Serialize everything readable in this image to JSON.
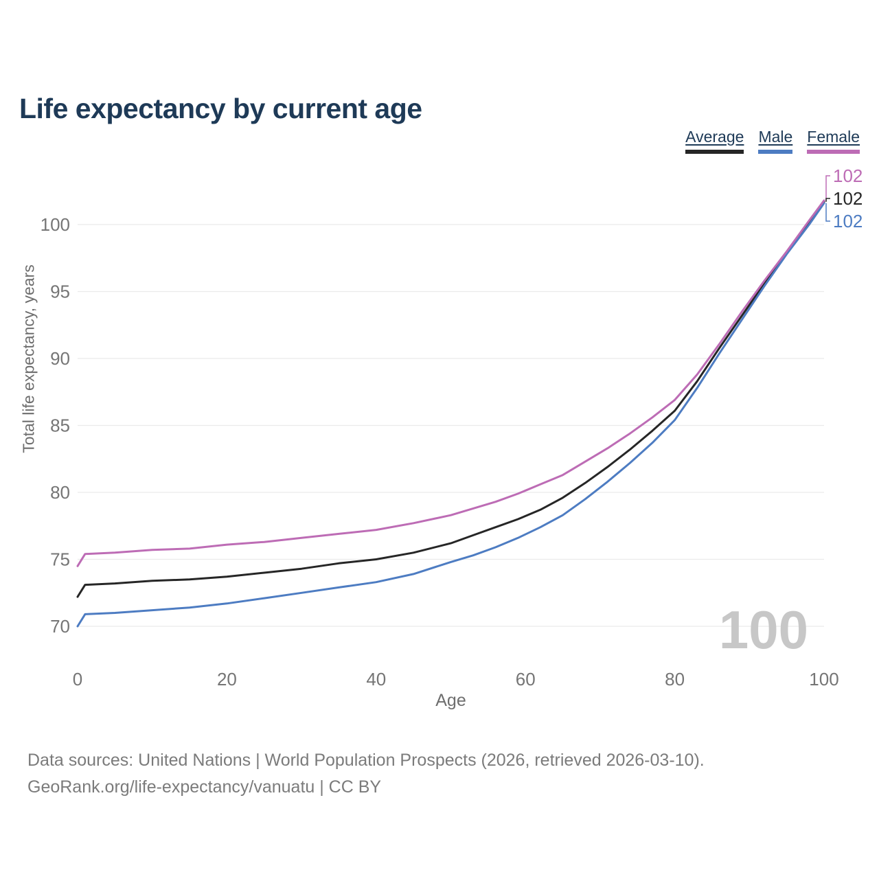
{
  "title": "Life expectancy by current age",
  "legend": {
    "items": [
      {
        "label": "Average",
        "color": "#262626"
      },
      {
        "label": "Male",
        "color": "#4d7cc2"
      },
      {
        "label": "Female",
        "color": "#bd6cb5"
      }
    ]
  },
  "watermark_age": "100",
  "footer": {
    "line1": "Data sources: United Nations | World Population Prospects (2026, retrieved 2026-03-10).",
    "line2": "GeoRank.org/life-expectancy/vanuatu | CC BY"
  },
  "chart_data": {
    "type": "line",
    "title": "Life expectancy by current age",
    "xlabel": "Age",
    "ylabel": "Total life expectancy, years",
    "xlim": [
      0,
      100
    ],
    "ylim": [
      70,
      102
    ],
    "xticks": [
      0,
      20,
      40,
      60,
      80,
      100
    ],
    "yticks": [
      70,
      75,
      80,
      85,
      90,
      95,
      100
    ],
    "grid": "horizontal",
    "legend_position": "top-right",
    "x": [
      0,
      1,
      5,
      10,
      15,
      20,
      25,
      30,
      35,
      40,
      45,
      50,
      53,
      56,
      59,
      62,
      65,
      68,
      71,
      74,
      77,
      80,
      83,
      86,
      89,
      92,
      95,
      98,
      100
    ],
    "series": [
      {
        "name": "Average",
        "color": "#262626",
        "end_label": "102",
        "values": [
          72.2,
          73.1,
          73.2,
          73.4,
          73.5,
          73.7,
          74.0,
          74.3,
          74.7,
          75.0,
          75.5,
          76.2,
          76.8,
          77.4,
          78.0,
          78.7,
          79.6,
          80.7,
          81.9,
          83.2,
          84.6,
          86.1,
          88.3,
          90.8,
          93.2,
          95.6,
          97.9,
          100.2,
          101.7
        ]
      },
      {
        "name": "Male",
        "color": "#4d7cc2",
        "end_label": "102",
        "values": [
          70.0,
          70.9,
          71.0,
          71.2,
          71.4,
          71.7,
          72.1,
          72.5,
          72.9,
          73.3,
          73.9,
          74.8,
          75.3,
          75.9,
          76.6,
          77.4,
          78.3,
          79.5,
          80.8,
          82.2,
          83.7,
          85.4,
          87.8,
          90.4,
          92.9,
          95.4,
          97.8,
          100.0,
          101.6
        ]
      },
      {
        "name": "Female",
        "color": "#bd6cb5",
        "end_label": "102",
        "values": [
          74.5,
          75.4,
          75.5,
          75.7,
          75.8,
          76.1,
          76.3,
          76.6,
          76.9,
          77.2,
          77.7,
          78.3,
          78.8,
          79.3,
          79.9,
          80.6,
          81.3,
          82.3,
          83.3,
          84.4,
          85.6,
          86.9,
          88.8,
          91.1,
          93.5,
          95.8,
          98.0,
          100.3,
          101.8
        ]
      }
    ],
    "colors": {
      "tick_text": "#757575",
      "axis_title_text": "#6e6e6e",
      "gridline": "#ebebeb",
      "watermark": "#c7c7c7"
    }
  }
}
